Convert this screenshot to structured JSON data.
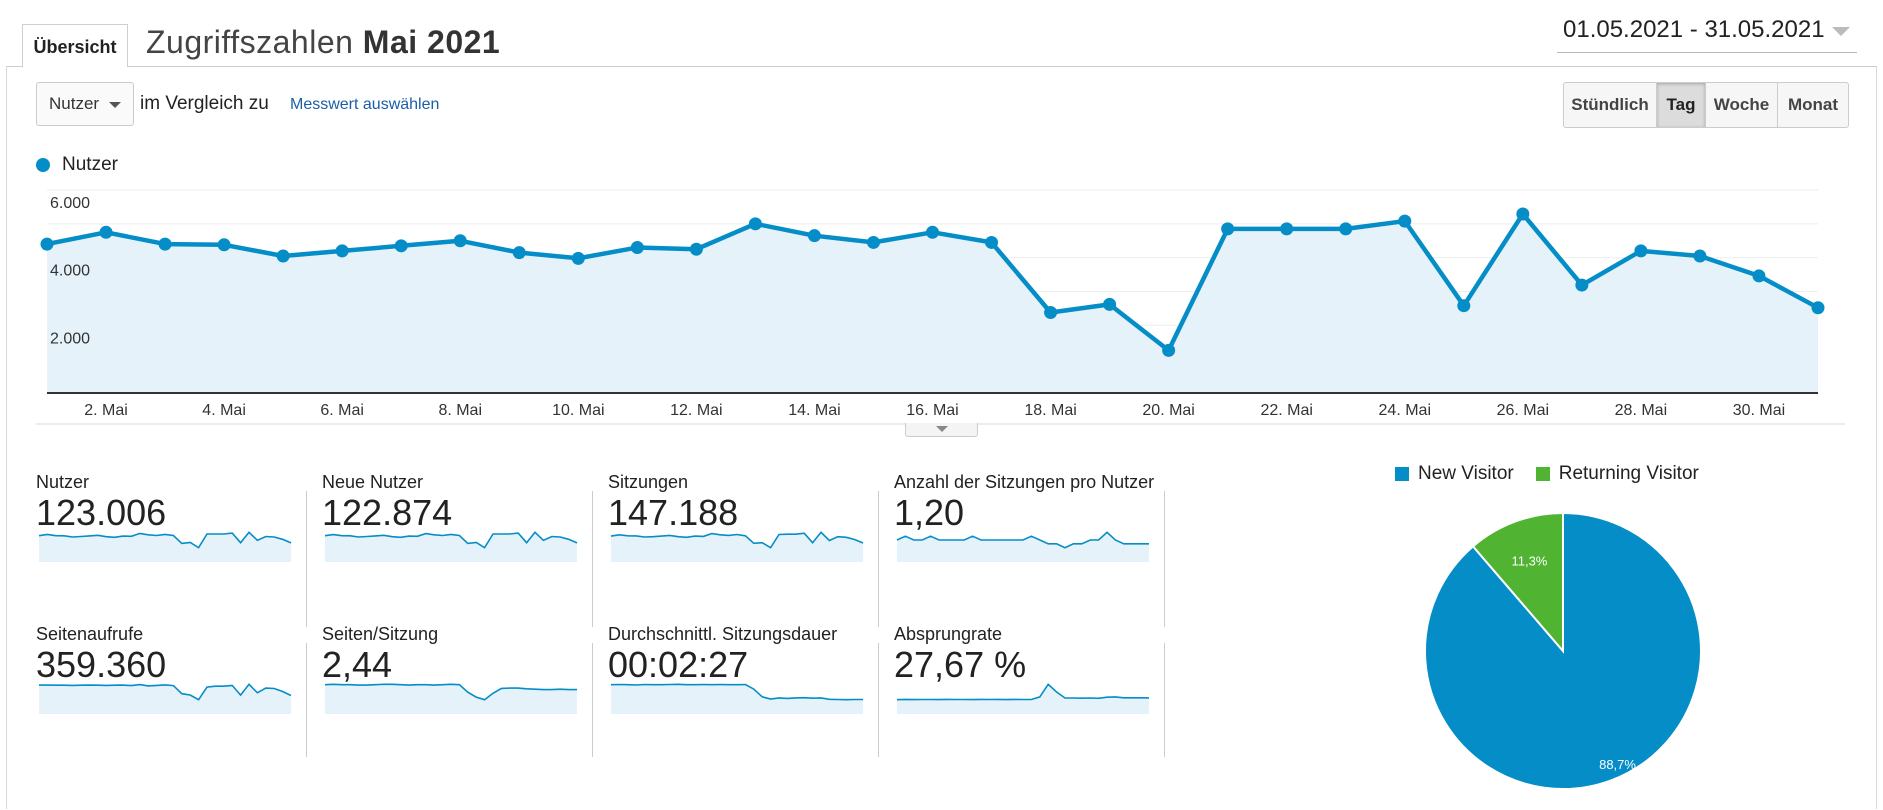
{
  "header": {
    "tab_label": "Übersicht",
    "title_prefix": "Zugriffszahlen",
    "title_bold": "Mai 2021",
    "date_range": "01.05.2021 - 31.05.2021"
  },
  "controls": {
    "metric_select": "Nutzer",
    "compare_label": "im Vergleich zu",
    "metric_link": "Messwert auswählen",
    "granularity": [
      {
        "label": "Stündlich",
        "active": false
      },
      {
        "label": "Tag",
        "active": true
      },
      {
        "label": "Woche",
        "active": false
      },
      {
        "label": "Monat",
        "active": false
      }
    ]
  },
  "colors": {
    "accent": "#058dc7",
    "fill": "#e6f2fa",
    "returning": "#50b432",
    "link": "#1a5ea8"
  },
  "chart_data": [
    {
      "type": "line",
      "series": [
        {
          "name": "Nutzer",
          "values": [
            4400,
            4750,
            4400,
            4380,
            4050,
            4200,
            4350,
            4500,
            4150,
            3980,
            4300,
            4250,
            5000,
            4650,
            4450,
            4750,
            4450,
            2380,
            2620,
            1260,
            4850,
            4850,
            4850,
            5080,
            2580,
            5290,
            3190,
            4200,
            4050,
            3460,
            2520
          ]
        }
      ],
      "x": [
        "1. Mai",
        "2. Mai",
        "3. Mai",
        "4. Mai",
        "5. Mai",
        "6. Mai",
        "7. Mai",
        "8. Mai",
        "9. Mai",
        "10. Mai",
        "11. Mai",
        "12. Mai",
        "13. Mai",
        "14. Mai",
        "15. Mai",
        "16. Mai",
        "17. Mai",
        "18. Mai",
        "19. Mai",
        "20. Mai",
        "21. Mai",
        "22. Mai",
        "23. Mai",
        "24. Mai",
        "25. Mai",
        "26. Mai",
        "27. Mai",
        "28. Mai",
        "29. Mai",
        "30. Mai",
        "31. Mai"
      ],
      "x_tick_labels": [
        "2. Mai",
        "4. Mai",
        "6. Mai",
        "8. Mai",
        "10. Mai",
        "12. Mai",
        "14. Mai",
        "16. Mai",
        "18. Mai",
        "20. Mai",
        "22. Mai",
        "24. Mai",
        "26. Mai",
        "28. Mai",
        "30. Mai"
      ],
      "y_tick_labels": [
        "6.000",
        "4.000",
        "2.000"
      ],
      "ylim": [
        0,
        6000
      ],
      "grid": true,
      "legend": "top-left"
    },
    {
      "type": "pie",
      "slices": [
        {
          "label": "New Visitor",
          "value": 88.7,
          "text": "88,7%",
          "color": "#058dc7"
        },
        {
          "label": "Returning Visitor",
          "value": 11.3,
          "text": "11,3%",
          "color": "#50b432"
        }
      ],
      "legend": "top"
    }
  ],
  "kpis": [
    {
      "label": "Nutzer",
      "value": "123.006",
      "trend": [
        4400,
        4750,
        4400,
        4380,
        4050,
        4200,
        4350,
        4500,
        4150,
        3980,
        4300,
        4250,
        5000,
        4650,
        4450,
        4750,
        4450,
        2380,
        2620,
        1260,
        4850,
        4850,
        4850,
        5080,
        2580,
        5290,
        3190,
        4200,
        4050,
        3460,
        2520
      ]
    },
    {
      "label": "Neue Nutzer",
      "value": "122.874",
      "trend": [
        4400,
        4700,
        4400,
        4380,
        4050,
        4200,
        4350,
        4500,
        4150,
        3980,
        4300,
        4250,
        4950,
        4650,
        4450,
        4750,
        4450,
        2380,
        2620,
        1260,
        4850,
        4850,
        4850,
        5080,
        2580,
        5290,
        3190,
        4200,
        4050,
        3460,
        2520
      ]
    },
    {
      "label": "Sitzungen",
      "value": "147.188",
      "trend": [
        5200,
        5600,
        5300,
        5250,
        4900,
        5000,
        5200,
        5400,
        5000,
        4800,
        5200,
        5100,
        6000,
        5600,
        5400,
        5700,
        5300,
        2900,
        3100,
        1500,
        5700,
        5800,
        5800,
        6100,
        3100,
        6400,
        3800,
        5000,
        4800,
        4100,
        3000
      ]
    },
    {
      "label": "Anzahl der Sitzungen pro Nutzer",
      "value": "1,20",
      "trend": [
        1.2,
        1.21,
        1.2,
        1.2,
        1.21,
        1.2,
        1.2,
        1.2,
        1.2,
        1.21,
        1.2,
        1.2,
        1.2,
        1.2,
        1.2,
        1.2,
        1.21,
        1.2,
        1.19,
        1.19,
        1.18,
        1.19,
        1.19,
        1.2,
        1.2,
        1.22,
        1.2,
        1.19,
        1.19,
        1.19,
        1.19
      ]
    },
    {
      "label": "Seitenaufrufe",
      "value": "359.360",
      "trend": [
        12500,
        12500,
        12400,
        12450,
        12300,
        12400,
        12500,
        12450,
        12300,
        12400,
        12500,
        12200,
        12800,
        12000,
        12300,
        12600,
        12200,
        7000,
        6200,
        3200,
        11200,
        11800,
        11800,
        12300,
        6100,
        13000,
        7600,
        10600,
        10300,
        8400,
        5900
      ]
    },
    {
      "label": "Seiten/Sitzung",
      "value": "2,44",
      "trend": [
        2.45,
        2.46,
        2.45,
        2.45,
        2.44,
        2.44,
        2.45,
        2.46,
        2.46,
        2.45,
        2.44,
        2.45,
        2.45,
        2.44,
        2.45,
        2.46,
        2.45,
        2.25,
        2.12,
        2.05,
        2.22,
        2.35,
        2.36,
        2.36,
        2.34,
        2.33,
        2.32,
        2.32,
        2.33,
        2.32,
        2.32
      ]
    },
    {
      "label": "Durchschnittl. Sitzungsdauer",
      "value": "00:02:27",
      "trend": [
        170,
        171,
        170,
        169,
        171,
        170,
        170,
        171,
        172,
        170,
        170,
        171,
        170,
        171,
        170,
        170,
        171,
        150,
        115,
        105,
        110,
        108,
        110,
        111,
        109,
        110,
        104,
        103,
        102,
        103,
        103
      ]
    },
    {
      "label": "Absprungrate",
      "value": "27,67 %",
      "trend": [
        24,
        24.5,
        24.2,
        24.3,
        24.4,
        24.2,
        24.5,
        24.3,
        24.4,
        24.2,
        24.5,
        24.3,
        24.6,
        24.2,
        24.5,
        24.3,
        24.4,
        29,
        52,
        38,
        27,
        27,
        26.8,
        27,
        26.5,
        28.5,
        29,
        27.5,
        27.5,
        27.4,
        27.3
      ]
    }
  ]
}
